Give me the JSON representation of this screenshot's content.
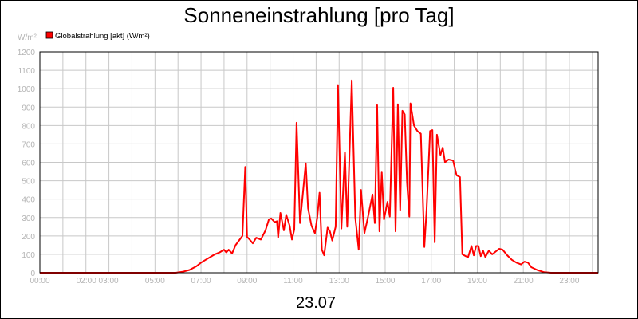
{
  "chart_data": {
    "type": "line",
    "title": "Sonneneinstrahlung [pro Tag]",
    "ylabel": "W/m²",
    "xlabel": "23.07",
    "ylim": [
      0,
      1200
    ],
    "xlim": [
      0,
      24.25
    ],
    "grid": true,
    "legend_position": "top-left",
    "colors": {
      "series": "#ff0000",
      "grid": "#c8c8c8",
      "tick": "#b4b4b4",
      "border": "#000000"
    },
    "y_ticks": [
      0,
      100,
      200,
      300,
      400,
      500,
      600,
      700,
      800,
      900,
      1000,
      1100,
      1200
    ],
    "x_ticks": [
      {
        "value": 0,
        "label": "00:00"
      },
      {
        "value": 2.5,
        "label": "02:00 03:00"
      },
      {
        "value": 5,
        "label": "05:00"
      },
      {
        "value": 7,
        "label": "07:00"
      },
      {
        "value": 9,
        "label": "09:00"
      },
      {
        "value": 11,
        "label": "11:00"
      },
      {
        "value": 13,
        "label": "13:00"
      },
      {
        "value": 15,
        "label": "15:00"
      },
      {
        "value": 17,
        "label": "17:00"
      },
      {
        "value": 19,
        "label": "19:00"
      },
      {
        "value": 21,
        "label": "21:00"
      },
      {
        "value": 23,
        "label": "23:00"
      }
    ],
    "series": [
      {
        "name": "Globalstrahlung [akt] (W/m²)",
        "points": [
          [
            0,
            0
          ],
          [
            5.9,
            0
          ],
          [
            6.2,
            5
          ],
          [
            6.5,
            15
          ],
          [
            6.8,
            35
          ],
          [
            7.0,
            55
          ],
          [
            7.2,
            70
          ],
          [
            7.4,
            85
          ],
          [
            7.6,
            100
          ],
          [
            7.8,
            110
          ],
          [
            8.0,
            125
          ],
          [
            8.1,
            110
          ],
          [
            8.2,
            125
          ],
          [
            8.35,
            105
          ],
          [
            8.5,
            150
          ],
          [
            8.65,
            175
          ],
          [
            8.8,
            200
          ],
          [
            8.92,
            575
          ],
          [
            9.0,
            195
          ],
          [
            9.15,
            175
          ],
          [
            9.25,
            160
          ],
          [
            9.4,
            190
          ],
          [
            9.6,
            180
          ],
          [
            9.8,
            230
          ],
          [
            9.95,
            290
          ],
          [
            10.05,
            295
          ],
          [
            10.2,
            275
          ],
          [
            10.3,
            280
          ],
          [
            10.35,
            190
          ],
          [
            10.45,
            325
          ],
          [
            10.6,
            230
          ],
          [
            10.7,
            315
          ],
          [
            10.85,
            255
          ],
          [
            10.95,
            180
          ],
          [
            11.05,
            235
          ],
          [
            11.15,
            815
          ],
          [
            11.3,
            270
          ],
          [
            11.4,
            400
          ],
          [
            11.55,
            595
          ],
          [
            11.65,
            350
          ],
          [
            11.8,
            255
          ],
          [
            11.95,
            215
          ],
          [
            12.05,
            300
          ],
          [
            12.15,
            435
          ],
          [
            12.25,
            125
          ],
          [
            12.35,
            95
          ],
          [
            12.5,
            245
          ],
          [
            12.6,
            225
          ],
          [
            12.7,
            175
          ],
          [
            12.85,
            250
          ],
          [
            12.95,
            1020
          ],
          [
            13.1,
            240
          ],
          [
            13.25,
            655
          ],
          [
            13.35,
            250
          ],
          [
            13.55,
            1045
          ],
          [
            13.7,
            300
          ],
          [
            13.85,
            125
          ],
          [
            13.95,
            450
          ],
          [
            14.1,
            215
          ],
          [
            14.25,
            300
          ],
          [
            14.45,
            425
          ],
          [
            14.55,
            270
          ],
          [
            14.65,
            910
          ],
          [
            14.75,
            225
          ],
          [
            14.85,
            545
          ],
          [
            14.95,
            290
          ],
          [
            15.1,
            385
          ],
          [
            15.2,
            305
          ],
          [
            15.35,
            1005
          ],
          [
            15.45,
            225
          ],
          [
            15.55,
            915
          ],
          [
            15.65,
            340
          ],
          [
            15.75,
            880
          ],
          [
            15.85,
            860
          ],
          [
            15.95,
            490
          ],
          [
            16.05,
            305
          ],
          [
            16.1,
            920
          ],
          [
            16.25,
            800
          ],
          [
            16.4,
            770
          ],
          [
            16.55,
            755
          ],
          [
            16.7,
            140
          ],
          [
            16.8,
            340
          ],
          [
            16.95,
            770
          ],
          [
            17.05,
            775
          ],
          [
            17.15,
            165
          ],
          [
            17.25,
            750
          ],
          [
            17.4,
            640
          ],
          [
            17.5,
            680
          ],
          [
            17.6,
            600
          ],
          [
            17.75,
            615
          ],
          [
            17.95,
            610
          ],
          [
            18.1,
            530
          ],
          [
            18.25,
            520
          ],
          [
            18.35,
            100
          ],
          [
            18.5,
            90
          ],
          [
            18.6,
            85
          ],
          [
            18.75,
            145
          ],
          [
            18.85,
            95
          ],
          [
            18.95,
            145
          ],
          [
            19.05,
            145
          ],
          [
            19.15,
            90
          ],
          [
            19.25,
            120
          ],
          [
            19.35,
            85
          ],
          [
            19.5,
            120
          ],
          [
            19.65,
            100
          ],
          [
            19.8,
            115
          ],
          [
            19.95,
            130
          ],
          [
            20.1,
            125
          ],
          [
            20.3,
            95
          ],
          [
            20.5,
            70
          ],
          [
            20.7,
            55
          ],
          [
            20.9,
            45
          ],
          [
            21.05,
            60
          ],
          [
            21.2,
            55
          ],
          [
            21.35,
            30
          ],
          [
            21.6,
            15
          ],
          [
            21.9,
            3
          ],
          [
            22.2,
            0
          ],
          [
            24.25,
            0
          ]
        ]
      }
    ],
    "bottom_label": "23.07"
  }
}
